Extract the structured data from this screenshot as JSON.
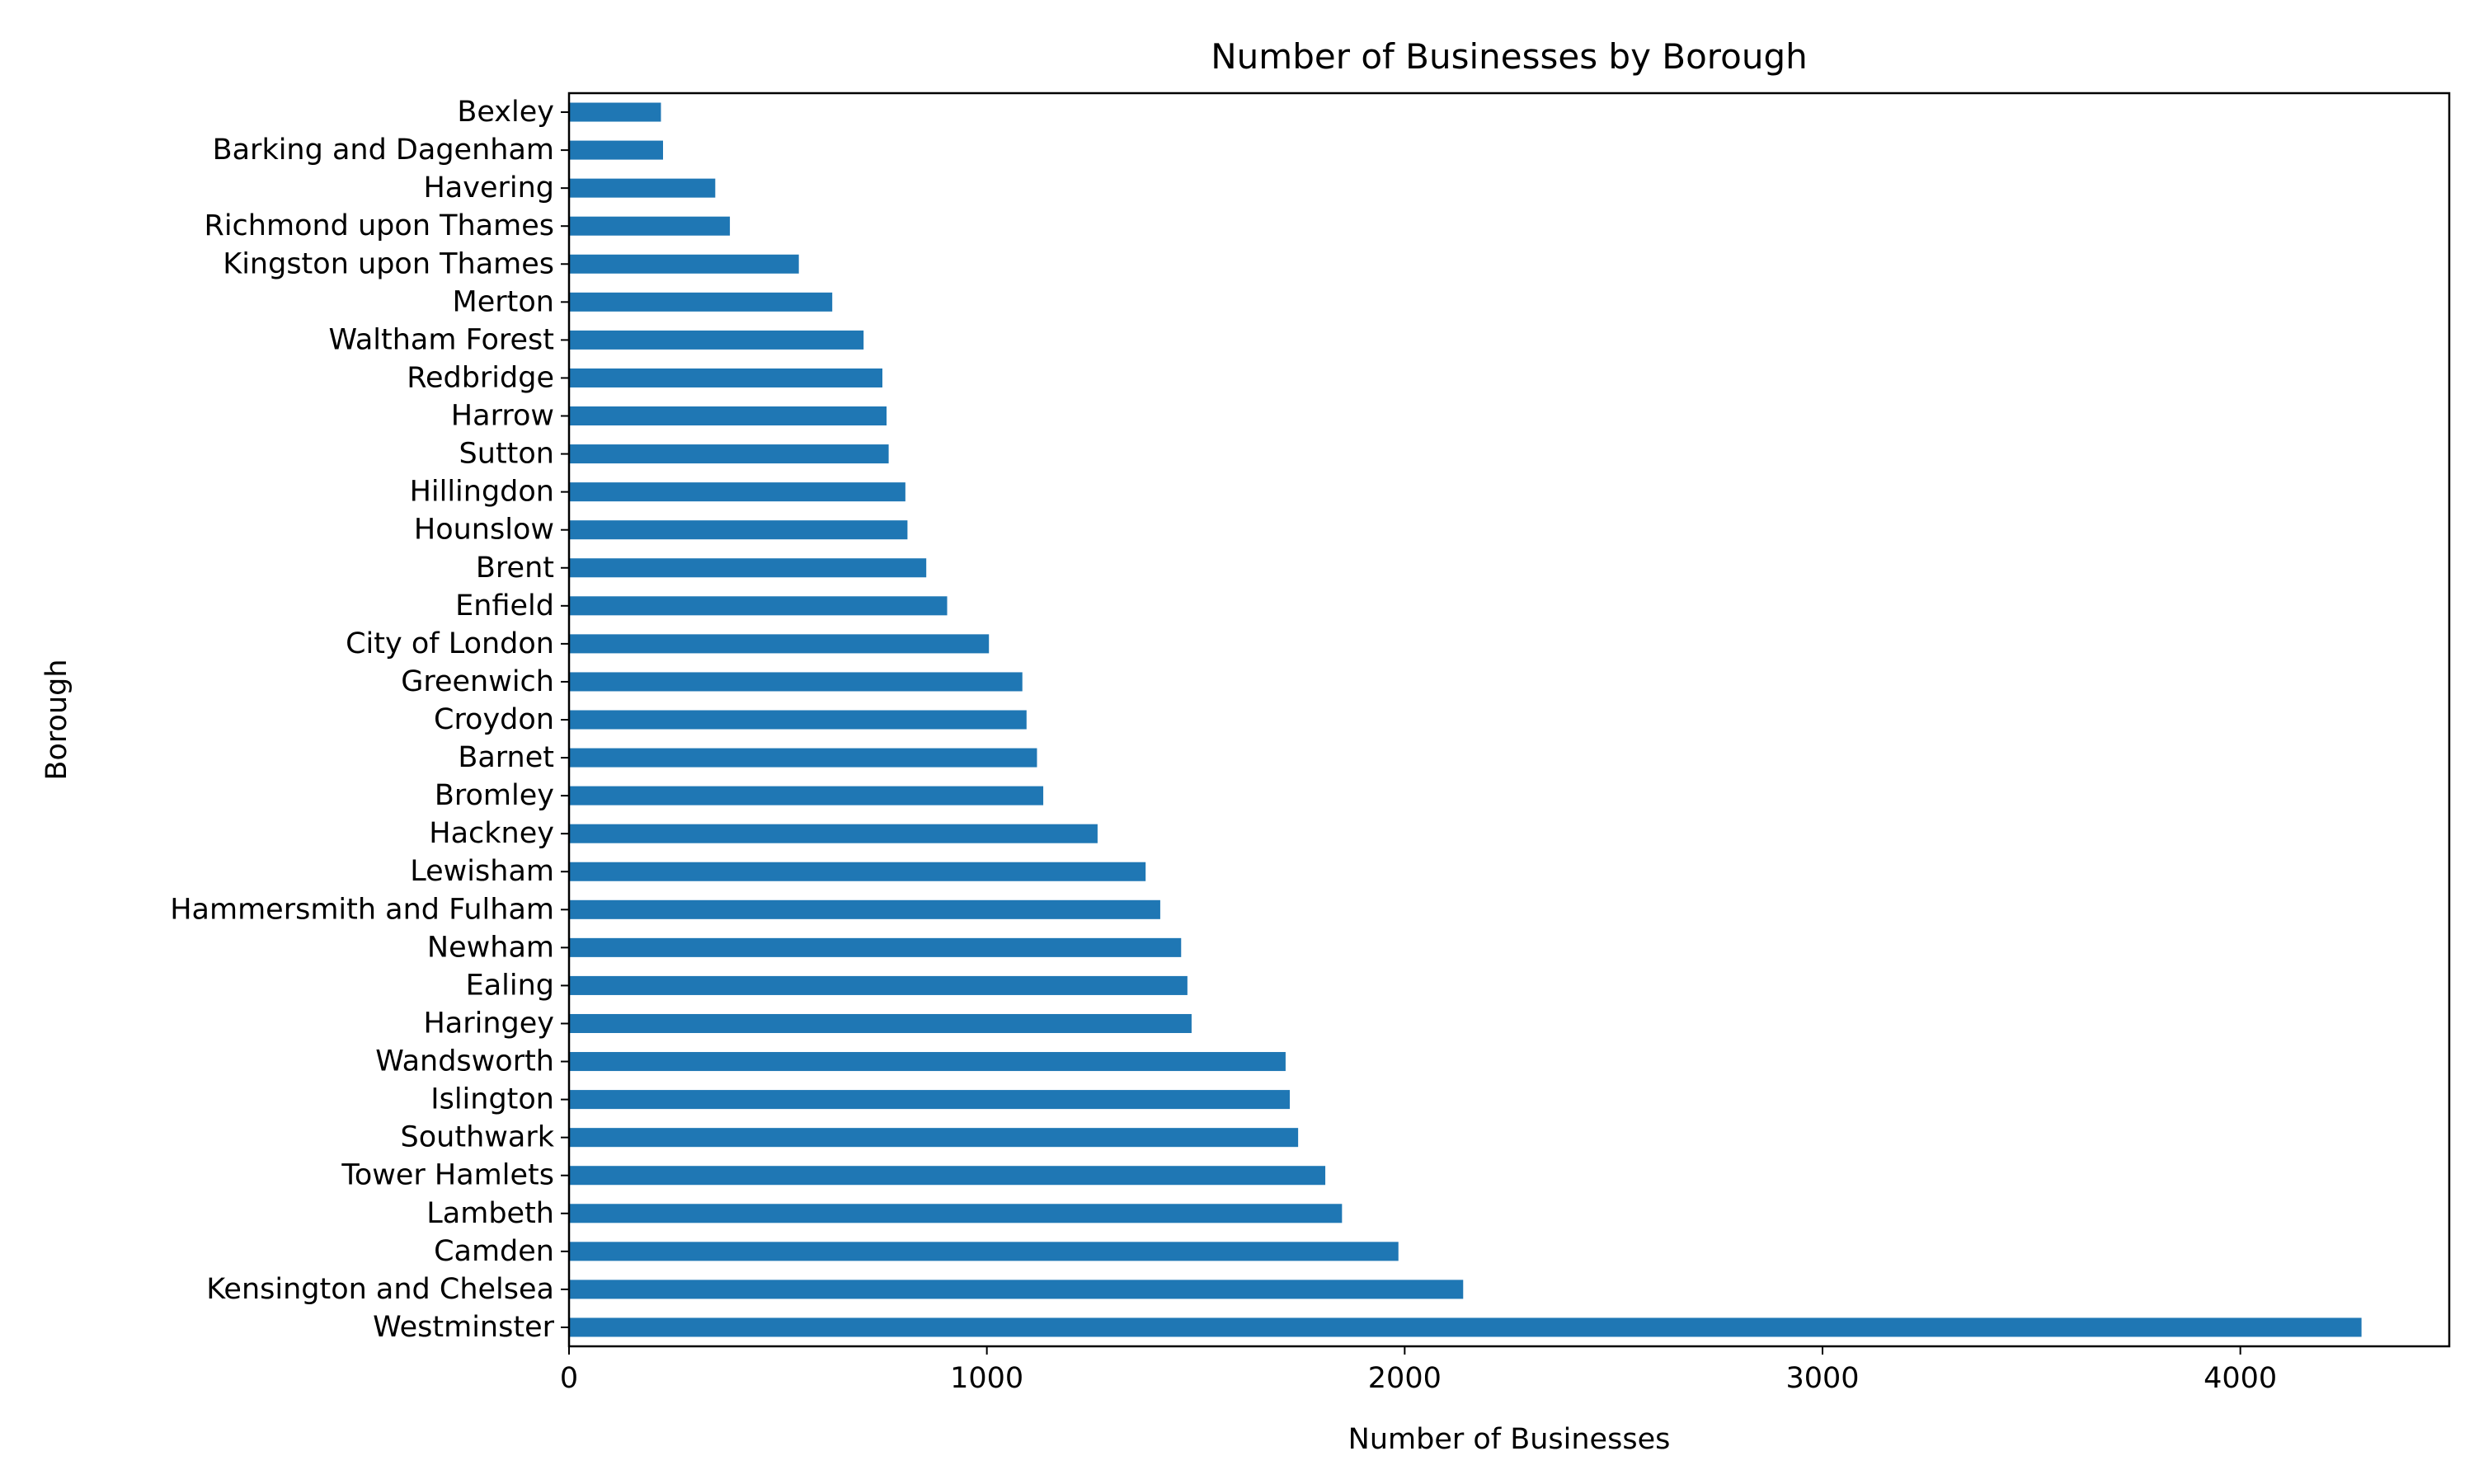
{
  "chart_data": {
    "type": "bar",
    "orientation": "horizontal",
    "title": "Number of Businesses by Borough",
    "xlabel": "Number of Businesses",
    "ylabel": "Borough",
    "xlim": [
      0,
      4500
    ],
    "xticks": [
      0,
      1000,
      2000,
      3000,
      4000
    ],
    "grid": false,
    "bar_color": "#1f77b4",
    "categories": [
      "Bexley",
      "Barking and Dagenham",
      "Havering",
      "Richmond upon Thames",
      "Kingston upon Thames",
      "Merton",
      "Waltham Forest",
      "Redbridge",
      "Harrow",
      "Sutton",
      "Hillingdon",
      "Hounslow",
      "Brent",
      "Enfield",
      "City of London",
      "Greenwich",
      "Croydon",
      "Barnet",
      "Bromley",
      "Hackney",
      "Lewisham",
      "Hammersmith and Fulham",
      "Newham",
      "Ealing",
      "Haringey",
      "Wandsworth",
      "Islington",
      "Southwark",
      "Tower Hamlets",
      "Lambeth",
      "Camden",
      "Kensington and Chelsea",
      "Westminster"
    ],
    "values": [
      220,
      225,
      350,
      385,
      550,
      630,
      705,
      750,
      760,
      765,
      805,
      810,
      855,
      905,
      1005,
      1085,
      1095,
      1120,
      1135,
      1265,
      1380,
      1415,
      1465,
      1480,
      1490,
      1715,
      1725,
      1745,
      1810,
      1850,
      1985,
      2140,
      4290
    ]
  }
}
